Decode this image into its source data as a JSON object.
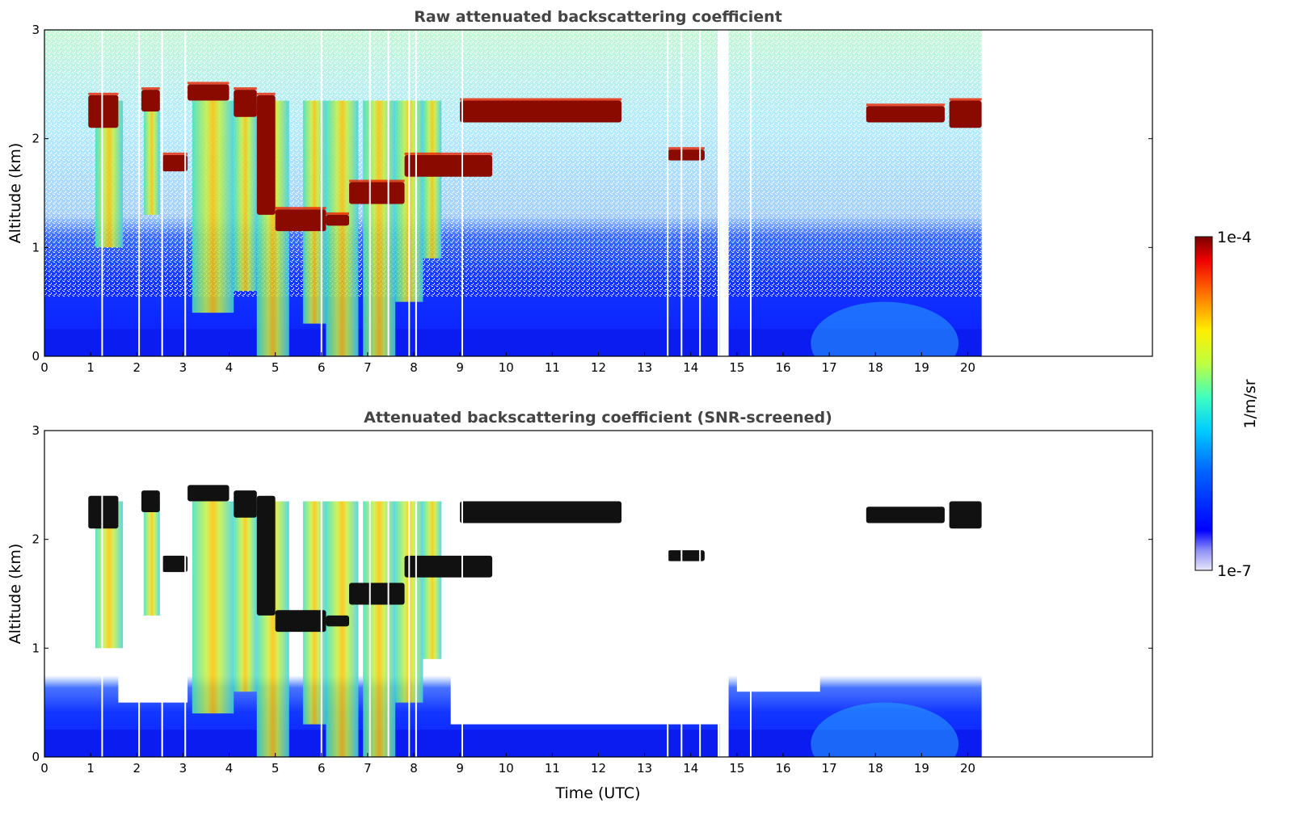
{
  "chart_data": [
    {
      "type": "heatmap",
      "title": "Raw attenuated backscattering coefficient",
      "xlabel": "",
      "ylabel": "Altitude (km)",
      "xlim": [
        0,
        24
      ],
      "ylim": [
        0,
        3
      ],
      "data_extent_x": [
        0,
        20.3
      ],
      "xticks": [
        0,
        1,
        2,
        3,
        4,
        5,
        6,
        7,
        8,
        9,
        10,
        11,
        12,
        13,
        14,
        15,
        16,
        17,
        18,
        19,
        20
      ],
      "yticks": [
        0,
        1,
        2,
        3
      ],
      "gaps_x": [
        1.25,
        2.05,
        2.55,
        3.05,
        6.0,
        7.05,
        7.45,
        7.9,
        8.05,
        9.05,
        13.5,
        13.8,
        14.2,
        14.6,
        15.3
      ],
      "cloud_layers": [
        {
          "x0": 0.95,
          "x1": 1.6,
          "y0": 2.1,
          "y1": 2.4
        },
        {
          "x0": 2.1,
          "x1": 2.5,
          "y0": 2.25,
          "y1": 2.45
        },
        {
          "x0": 2.55,
          "x1": 3.1,
          "y0": 1.7,
          "y1": 1.85
        },
        {
          "x0": 3.1,
          "x1": 4.0,
          "y0": 2.35,
          "y1": 2.5
        },
        {
          "x0": 4.1,
          "x1": 4.6,
          "y0": 2.2,
          "y1": 2.45
        },
        {
          "x0": 4.6,
          "x1": 5.0,
          "y0": 1.3,
          "y1": 2.4
        },
        {
          "x0": 5.0,
          "x1": 6.1,
          "y0": 1.15,
          "y1": 1.35
        },
        {
          "x0": 6.1,
          "x1": 6.6,
          "y0": 1.2,
          "y1": 1.3
        },
        {
          "x0": 6.6,
          "x1": 7.8,
          "y0": 1.4,
          "y1": 1.6
        },
        {
          "x0": 7.8,
          "x1": 9.7,
          "y0": 1.65,
          "y1": 1.85
        },
        {
          "x0": 9.0,
          "x1": 12.5,
          "y0": 2.15,
          "y1": 2.35
        },
        {
          "x0": 13.5,
          "x1": 14.3,
          "y0": 1.8,
          "y1": 1.9
        },
        {
          "x0": 17.8,
          "x1": 19.5,
          "y0": 2.15,
          "y1": 2.3
        },
        {
          "x0": 19.6,
          "x1": 20.3,
          "y0": 2.1,
          "y1": 2.35
        }
      ]
    },
    {
      "type": "heatmap",
      "title": "Attenuated backscattering coefficient (SNR-screened)",
      "xlabel": "Time (UTC)",
      "ylabel": "Altitude (km)",
      "xlim": [
        0,
        24
      ],
      "ylim": [
        0,
        3
      ],
      "data_extent_x": [
        0,
        20.3
      ],
      "xticks": [
        0,
        1,
        2,
        3,
        4,
        5,
        6,
        7,
        8,
        9,
        10,
        11,
        12,
        13,
        14,
        15,
        16,
        17,
        18,
        19,
        20
      ],
      "yticks": [
        0,
        1,
        2,
        3
      ],
      "screened": true
    }
  ],
  "colorbar": {
    "label": "1/m/sr",
    "max_label": "1e-4",
    "min_label": "1e-7",
    "colormap": "jet",
    "scale": "log",
    "range": [
      1e-07,
      0.0001
    ]
  },
  "colors": {
    "axis": "#000000",
    "title": "#444444"
  }
}
